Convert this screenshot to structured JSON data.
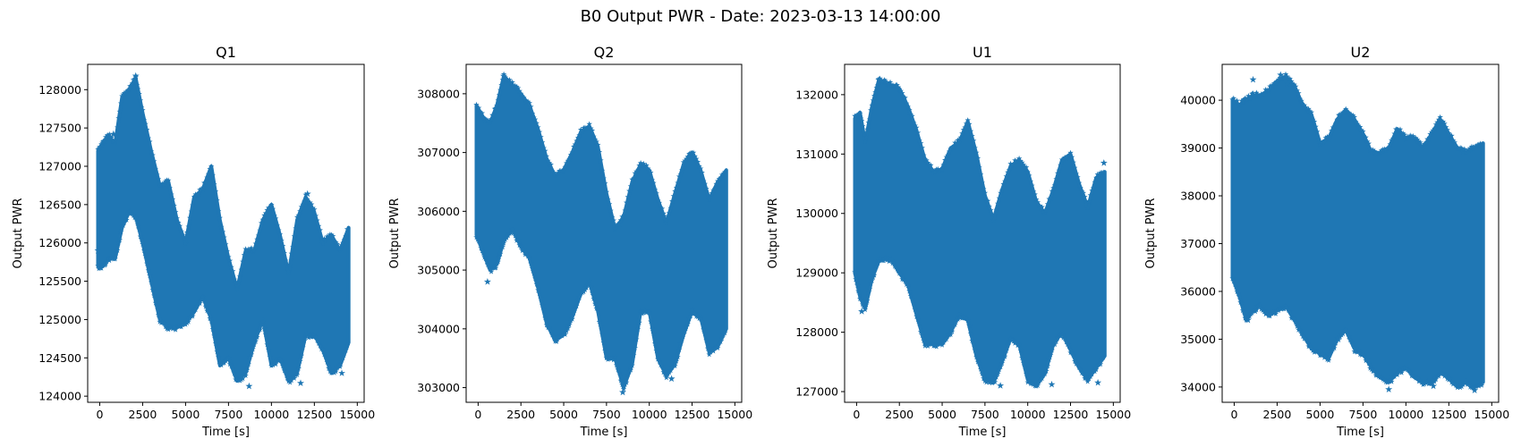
{
  "figure": {
    "suptitle": "B0 Output PWR - Date: 2023-03-13 14:00:00"
  },
  "style": {
    "series_color": "#1f77b4",
    "marker": "star"
  },
  "chart_data": [
    {
      "type": "scatter",
      "title": "Q1",
      "xlabel": "Time [s]",
      "ylabel": "Output PWR",
      "xlim": [
        -700,
        15400
      ],
      "ylim": [
        123920,
        128330
      ],
      "xticks": [
        0,
        2500,
        5000,
        7500,
        10000,
        12500,
        15000
      ],
      "xtick_labels": [
        "0",
        "2500",
        "5000",
        "7500",
        "10000",
        "12500",
        "15000"
      ],
      "yticks": [
        124000,
        124500,
        125000,
        125500,
        126000,
        126500,
        127000,
        127500,
        128000
      ],
      "ytick_labels": [
        "124000",
        "124500",
        "125000",
        "125500",
        "126000",
        "126500",
        "127000",
        "127500",
        "128000"
      ],
      "grid": false,
      "envelope": {
        "x": [
          -100,
          200,
          500,
          900,
          1300,
          1700,
          2100,
          2500,
          3000,
          3500,
          4000,
          4500,
          5000,
          5500,
          6000,
          6500,
          7000,
          7500,
          8000,
          8500,
          9000,
          9500,
          10000,
          10500,
          11000,
          11500,
          12000,
          12500,
          13000,
          13500,
          14000,
          14500
        ],
        "upper": [
          127200,
          127300,
          127400,
          127300,
          127900,
          128000,
          128150,
          127700,
          127200,
          126750,
          126800,
          126300,
          126000,
          126600,
          126700,
          127000,
          126300,
          125800,
          125400,
          125900,
          125900,
          126300,
          126500,
          126100,
          125600,
          126300,
          126600,
          126400,
          126000,
          126100,
          125900,
          126200
        ],
        "lower": [
          125700,
          125700,
          125800,
          125800,
          126200,
          126400,
          126350,
          126000,
          125500,
          125000,
          124900,
          124900,
          124950,
          125100,
          125300,
          125000,
          124400,
          124500,
          124200,
          124300,
          124700,
          125000,
          124400,
          124500,
          124200,
          124300,
          124800,
          124800,
          124600,
          124300,
          124400,
          124700
        ]
      },
      "outliers": [
        [
          2100,
          128180
        ],
        [
          12100,
          126640
        ],
        [
          800,
          127420
        ],
        [
          -100,
          125900
        ],
        [
          8700,
          124130
        ],
        [
          11700,
          124170
        ],
        [
          14100,
          124300
        ]
      ]
    },
    {
      "type": "scatter",
      "title": "Q2",
      "xlabel": "Time [s]",
      "ylabel": "Output PWR",
      "xlim": [
        -700,
        15400
      ],
      "ylim": [
        302750,
        308500
      ],
      "xticks": [
        0,
        2500,
        5000,
        7500,
        10000,
        12500,
        15000
      ],
      "xtick_labels": [
        "0",
        "2500",
        "5000",
        "7500",
        "10000",
        "12500",
        "15000"
      ],
      "yticks": [
        303000,
        304000,
        305000,
        306000,
        307000,
        308000
      ],
      "ytick_labels": [
        "303000",
        "304000",
        "305000",
        "306000",
        "307000",
        "308000"
      ],
      "grid": false,
      "envelope": {
        "x": [
          -100,
          300,
          700,
          1100,
          1500,
          2000,
          2500,
          3000,
          3500,
          4000,
          4500,
          5000,
          5500,
          6000,
          6500,
          7000,
          7500,
          8000,
          8500,
          9000,
          9500,
          10000,
          10500,
          11000,
          11500,
          12000,
          12500,
          13000,
          13500,
          14000,
          14500
        ],
        "upper": [
          307800,
          307600,
          307500,
          307800,
          308300,
          308150,
          308000,
          307800,
          307400,
          306900,
          306600,
          306700,
          307000,
          307350,
          307450,
          307100,
          306300,
          305700,
          305900,
          306500,
          306800,
          306700,
          306200,
          305800,
          306300,
          306800,
          307000,
          306700,
          306200,
          306500,
          306700
        ],
        "lower": [
          305600,
          305300,
          305000,
          305100,
          305500,
          305700,
          305400,
          305200,
          304700,
          304100,
          303800,
          303900,
          304200,
          304600,
          304800,
          304300,
          303500,
          303500,
          303000,
          303400,
          304300,
          304300,
          303500,
          303200,
          303400,
          303900,
          304300,
          304200,
          303600,
          303700,
          304000
        ]
      },
      "outliers": [
        [
          1500,
          308300
        ],
        [
          550,
          304800
        ],
        [
          8450,
          302920
        ],
        [
          11300,
          303150
        ]
      ]
    },
    {
      "type": "scatter",
      "title": "U1",
      "xlabel": "Time [s]",
      "ylabel": "Output PWR",
      "xlim": [
        -700,
        15400
      ],
      "ylim": [
        126820,
        132510
      ],
      "xticks": [
        0,
        2500,
        5000,
        7500,
        10000,
        12500,
        15000
      ],
      "xtick_labels": [
        "0",
        "2500",
        "5000",
        "7500",
        "10000",
        "12500",
        "15000"
      ],
      "yticks": [
        127000,
        128000,
        129000,
        130000,
        131000,
        132000
      ],
      "ytick_labels": [
        "127000",
        "128000",
        "129000",
        "130000",
        "131000",
        "132000"
      ],
      "grid": false,
      "envelope": {
        "x": [
          -100,
          200,
          500,
          900,
          1300,
          1700,
          2100,
          2500,
          3000,
          3500,
          4000,
          4500,
          5000,
          5500,
          6000,
          6500,
          7000,
          7500,
          8000,
          8500,
          9000,
          9500,
          10000,
          10500,
          11000,
          11500,
          12000,
          12500,
          13000,
          13500,
          14000,
          14500
        ],
        "upper": [
          131600,
          131700,
          131200,
          131800,
          132250,
          132200,
          132150,
          132100,
          131800,
          131400,
          130900,
          130700,
          130750,
          131100,
          131200,
          131550,
          131000,
          130300,
          129900,
          130400,
          130800,
          130900,
          130700,
          130200,
          130000,
          130400,
          130900,
          131000,
          130500,
          130100,
          130600,
          130700
        ],
        "lower": [
          129000,
          128600,
          128400,
          128900,
          129200,
          129250,
          129200,
          129000,
          128800,
          128300,
          127800,
          127800,
          127800,
          128000,
          128300,
          128200,
          127600,
          127200,
          127150,
          127500,
          127900,
          127800,
          127200,
          127100,
          127300,
          127800,
          128000,
          127700,
          127400,
          127200,
          127400,
          127600
        ]
      },
      "outliers": [
        [
          1300,
          132250
        ],
        [
          300,
          128350
        ],
        [
          14450,
          130850
        ],
        [
          8400,
          127100
        ],
        [
          11400,
          127120
        ],
        [
          14100,
          127150
        ]
      ]
    },
    {
      "type": "scatter",
      "title": "U2",
      "xlabel": "Time [s]",
      "ylabel": "Output PWR",
      "xlim": [
        -700,
        15400
      ],
      "ylim": [
        33680,
        40750
      ],
      "xticks": [
        0,
        2500,
        5000,
        7500,
        10000,
        12500,
        15000
      ],
      "xtick_labels": [
        "0",
        "2500",
        "5000",
        "7500",
        "10000",
        "12500",
        "15000"
      ],
      "yticks": [
        34000,
        35000,
        36000,
        37000,
        38000,
        39000,
        40000
      ],
      "ytick_labels": [
        "34000",
        "35000",
        "36000",
        "37000",
        "38000",
        "39000",
        "40000"
      ],
      "grid": false,
      "envelope": {
        "x": [
          -100,
          300,
          700,
          1100,
          1500,
          2000,
          2500,
          3000,
          3500,
          4000,
          4500,
          5000,
          5500,
          6000,
          6500,
          7000,
          7500,
          8000,
          8500,
          9000,
          9500,
          10000,
          10500,
          11000,
          11500,
          12000,
          12500,
          13000,
          13500,
          14000,
          14500
        ],
        "upper": [
          40000,
          39900,
          40000,
          40100,
          40100,
          40200,
          40400,
          40500,
          40300,
          39900,
          39700,
          39100,
          39200,
          39600,
          39800,
          39600,
          39300,
          38900,
          38900,
          39000,
          39400,
          39200,
          39200,
          39000,
          39300,
          39600,
          39300,
          39000,
          38900,
          39000,
          39100
        ],
        "lower": [
          36300,
          35900,
          35400,
          35600,
          35700,
          35500,
          35600,
          35700,
          35400,
          35100,
          34800,
          34700,
          34600,
          35000,
          35200,
          34800,
          34700,
          34400,
          34200,
          34100,
          34300,
          34400,
          34200,
          34100,
          34100,
          34300,
          34200,
          34000,
          34100,
          34000,
          34100
        ]
      },
      "outliers": [
        [
          1100,
          40430
        ],
        [
          2700,
          40530
        ],
        [
          3100,
          40350
        ],
        [
          800,
          35400
        ],
        [
          9000,
          33950
        ],
        [
          11600,
          34020
        ],
        [
          14000,
          33930
        ]
      ]
    }
  ]
}
